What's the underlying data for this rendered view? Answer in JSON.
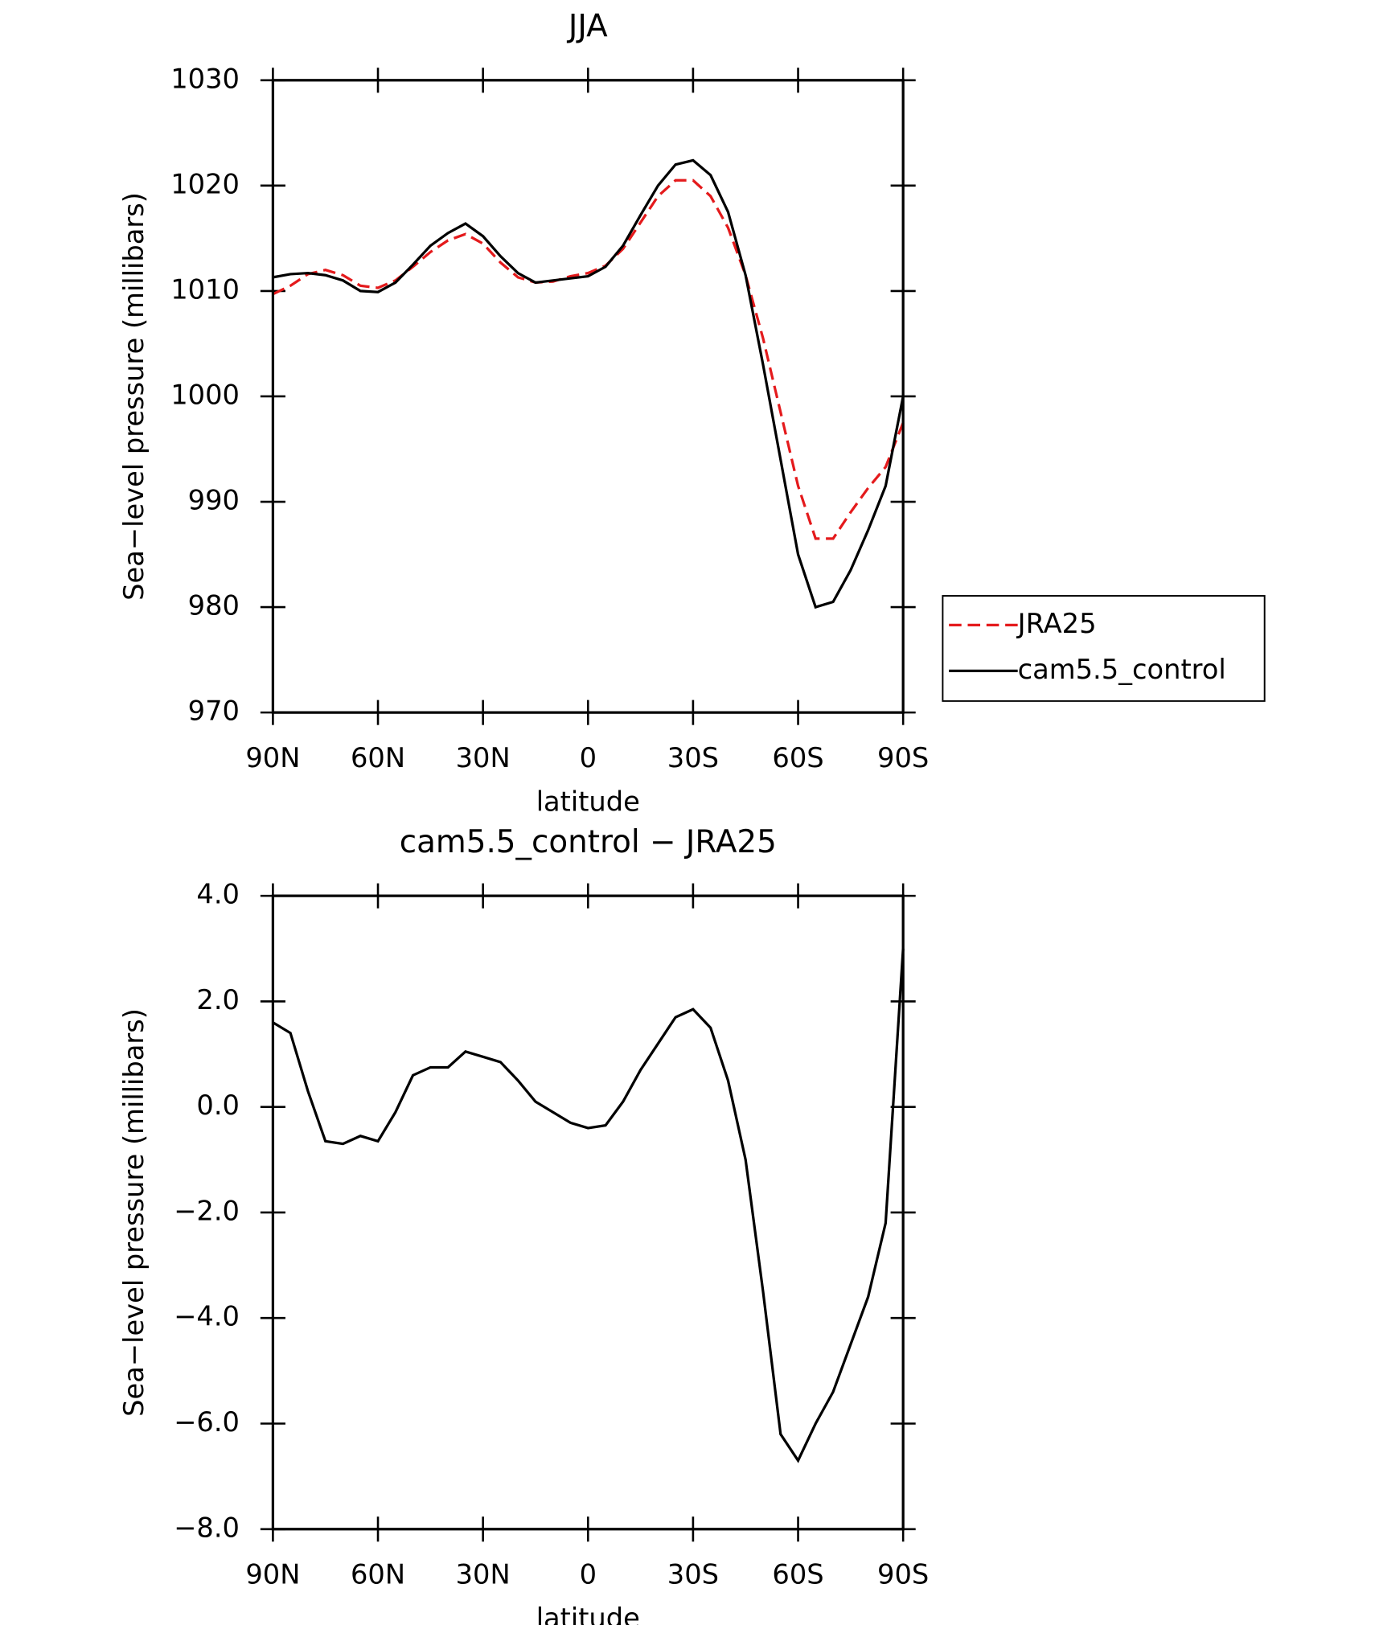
{
  "chart_data": [
    {
      "type": "line",
      "title": "JJA",
      "xlabel": "latitude",
      "ylabel": "Sea−level pressure (millibars)",
      "x": [
        90,
        85,
        80,
        75,
        70,
        65,
        60,
        55,
        50,
        45,
        40,
        35,
        30,
        25,
        20,
        15,
        10,
        5,
        0,
        -5,
        -10,
        -15,
        -20,
        -25,
        -30,
        -35,
        -40,
        -45,
        -50,
        -55,
        -60,
        -65,
        -70,
        -75,
        -80,
        -85,
        -90
      ],
      "series": [
        {
          "name": "JRA25",
          "color": "#e41a1c",
          "dash": true,
          "values": [
            1009.7,
            1010.5,
            1011.6,
            1012.0,
            1011.5,
            1010.5,
            1010.3,
            1011.0,
            1012.3,
            1013.7,
            1014.8,
            1015.4,
            1014.5,
            1012.7,
            1011.3,
            1010.8,
            1010.9,
            1011.4,
            1011.7,
            1012.4,
            1014.0,
            1016.5,
            1019.0,
            1020.5,
            1020.5,
            1019.0,
            1016.0,
            1011.5,
            1005.5,
            998.5,
            991.5,
            986.5,
            986.5,
            989.0,
            991.3,
            993.3,
            997.5
          ]
        },
        {
          "name": "cam5.5_control",
          "color": "#000000",
          "dash": false,
          "values": [
            1011.3,
            1011.6,
            1011.7,
            1011.5,
            1011.0,
            1010.0,
            1009.9,
            1010.8,
            1012.5,
            1014.3,
            1015.5,
            1016.4,
            1015.2,
            1013.3,
            1011.7,
            1010.8,
            1011.0,
            1011.2,
            1011.4,
            1012.3,
            1014.3,
            1017.2,
            1020.0,
            1022.0,
            1022.4,
            1021.0,
            1017.5,
            1011.5,
            1003.0,
            994.0,
            985.0,
            980.0,
            980.5,
            983.5,
            987.3,
            991.5,
            1000.0
          ]
        }
      ],
      "xlim": [
        90,
        -90
      ],
      "xticks": [
        {
          "value": 90,
          "label": "90N"
        },
        {
          "value": 60,
          "label": "60N"
        },
        {
          "value": 30,
          "label": "30N"
        },
        0,
        {
          "value": -30,
          "label": "30S"
        },
        {
          "value": -60,
          "label": "60S"
        },
        {
          "value": -90,
          "label": "90S"
        }
      ],
      "ylim": [
        970,
        1030
      ],
      "yticks": [
        970,
        980,
        990,
        1000,
        1010,
        1020,
        1030
      ],
      "legend": "right"
    },
    {
      "type": "line",
      "title": "cam5.5_control − JRA25",
      "xlabel": "latitude",
      "ylabel": "Sea−level pressure (millibars)",
      "x": [
        90,
        85,
        80,
        75,
        70,
        65,
        60,
        55,
        50,
        45,
        40,
        35,
        30,
        25,
        20,
        15,
        10,
        5,
        0,
        -5,
        -10,
        -15,
        -20,
        -25,
        -30,
        -35,
        -40,
        -45,
        -50,
        -55,
        -60,
        -65,
        -70,
        -75,
        -80,
        -85,
        -90
      ],
      "series": [
        {
          "color": "#000000",
          "dash": false,
          "values": [
            1.6,
            1.4,
            0.3,
            -0.65,
            -0.7,
            -0.55,
            -0.65,
            -0.1,
            0.6,
            0.75,
            0.75,
            1.05,
            0.95,
            0.85,
            0.5,
            0.1,
            -0.1,
            -0.3,
            -0.4,
            -0.35,
            0.1,
            0.7,
            1.2,
            1.7,
            1.85,
            1.5,
            0.5,
            -1.0,
            -3.5,
            -6.2,
            -6.7,
            -6.0,
            -5.4,
            -4.5,
            -3.6,
            -2.2,
            3.0
          ]
        }
      ],
      "xlim": [
        90,
        -90
      ],
      "xticks": [
        {
          "value": 90,
          "label": "90N"
        },
        {
          "value": 60,
          "label": "60N"
        },
        {
          "value": 30,
          "label": "30N"
        },
        0,
        {
          "value": -30,
          "label": "30S"
        },
        {
          "value": -60,
          "label": "60S"
        },
        {
          "value": -90,
          "label": "90S"
        }
      ],
      "ylim": [
        -8,
        4
      ],
      "yticks": [
        {
          "value": -8,
          "label": "−8.0"
        },
        {
          "value": -6,
          "label": "−6.0"
        },
        {
          "value": -4,
          "label": "−4.0"
        },
        {
          "value": -2,
          "label": "−2.0"
        },
        {
          "value": 0,
          "label": "0.0"
        },
        {
          "value": 2,
          "label": "2.0"
        },
        {
          "value": 4,
          "label": "4.0"
        }
      ]
    }
  ]
}
